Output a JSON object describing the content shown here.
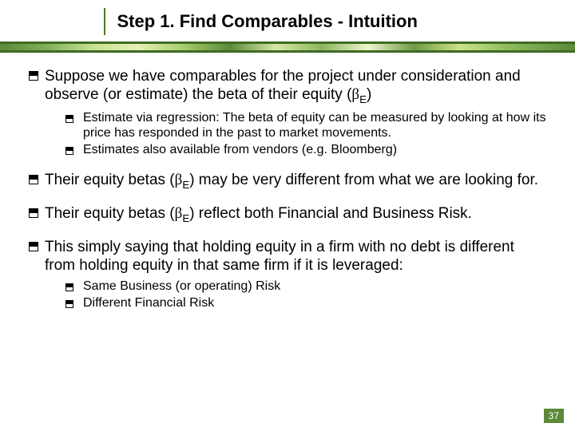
{
  "title": "Step 1. Find Comparables - Intuition",
  "bullets": {
    "b1": {
      "pre": "Suppose we have comparables for the project under consideration and observe (or estimate) the beta of their equity (",
      "sym": "β",
      "sub": "E",
      "post": ")"
    },
    "b1a": "Estimate via regression: The beta of equity can be measured by looking at how its price has responded in the past to market movements.",
    "b1b": "Estimates also available from vendors (e.g. Bloomberg)",
    "b2": {
      "pre": "Their equity betas (",
      "sym": "β",
      "sub": "E",
      "post": ") may be very different from what we are looking for."
    },
    "b3": {
      "pre": "Their equity betas (",
      "sym": "β",
      "sub": "E",
      "post": ") reflect both Financial and Business Risk."
    },
    "b4": "This simply saying that holding equity in a firm with no debt is different from holding equity in that same firm if it is leveraged:",
    "b4a": "Same Business (or operating) Risk",
    "b4b": "Different Financial Risk"
  },
  "page_number": "37",
  "colors": {
    "accent": "#5a8a3a",
    "title_rule": "#4a7a2b",
    "text": "#000000",
    "page_num_bg": "#5a8a3a",
    "page_num_fg": "#ffffff"
  },
  "fonts": {
    "title_size_pt": 22,
    "body_size_pt": 19,
    "sub_size_pt": 16
  }
}
